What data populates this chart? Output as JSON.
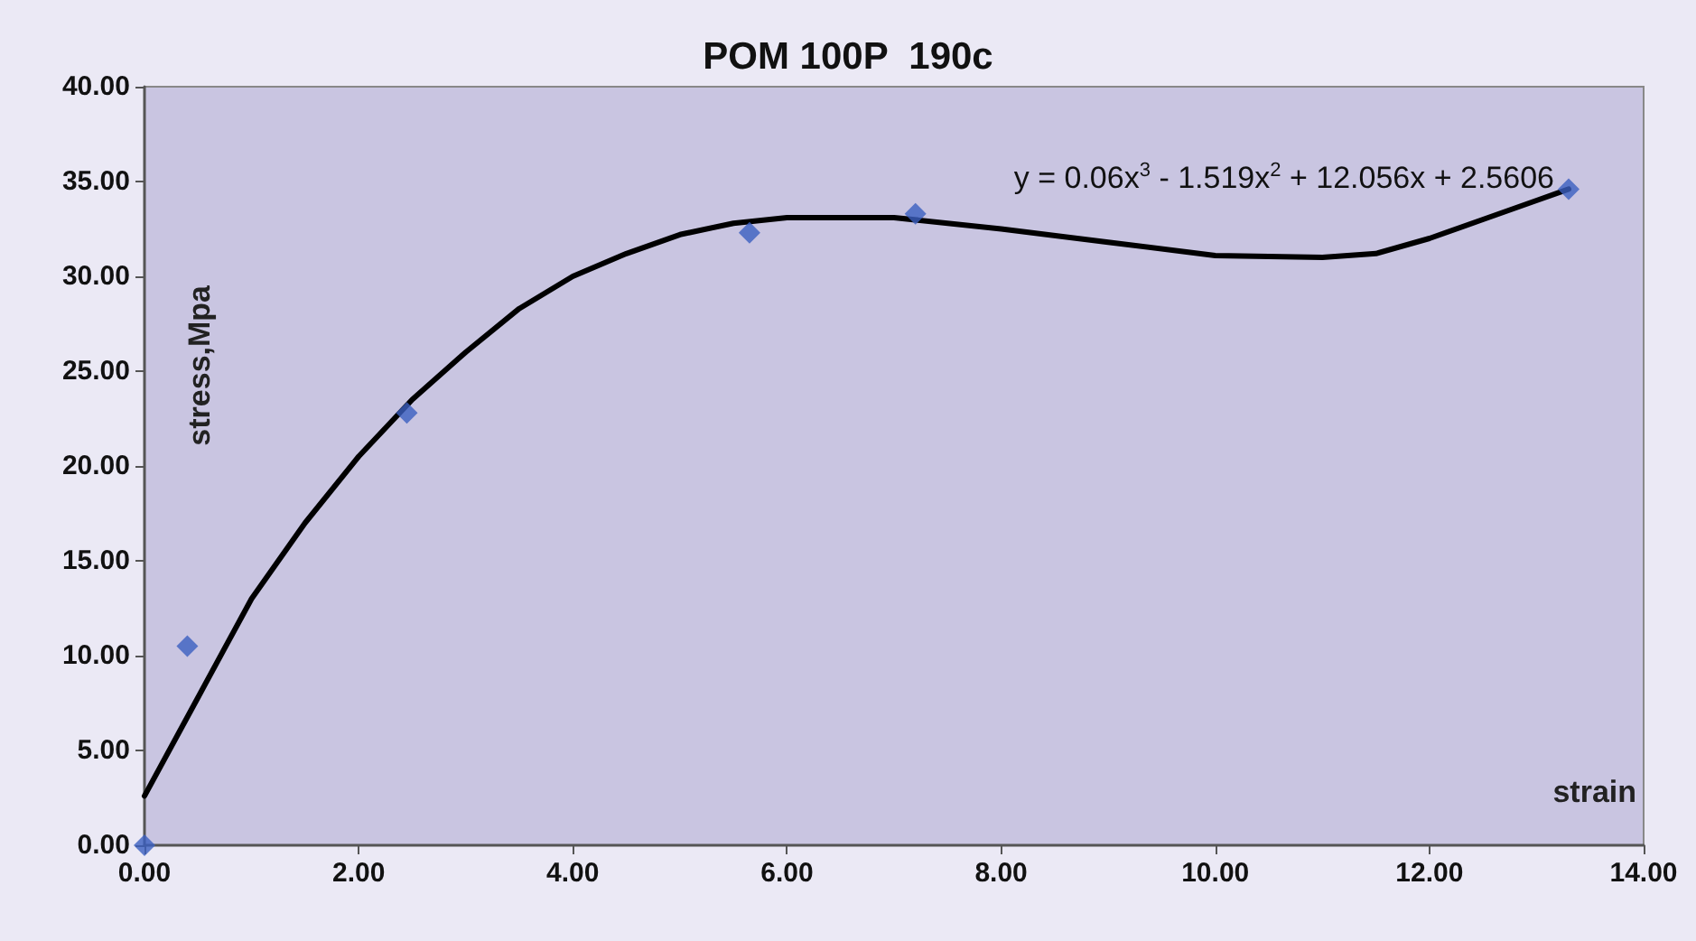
{
  "chart_data": {
    "type": "scatter",
    "title": "POM 100P  190c",
    "xlabel": "strain",
    "ylabel": "stress,Mpa",
    "xlim": [
      0,
      14
    ],
    "xticks": [
      {
        "value": 0,
        "label": "0.00"
      },
      {
        "value": 2,
        "label": "2.00"
      },
      {
        "value": 4,
        "label": "4.00"
      },
      {
        "value": 6,
        "label": "6.00"
      },
      {
        "value": 8,
        "label": "8.00"
      },
      {
        "value": 10,
        "label": "10.00"
      },
      {
        "value": 12,
        "label": "12.00"
      },
      {
        "value": 14,
        "label": "14.00"
      }
    ],
    "ylim": [
      0,
      40
    ],
    "yticks": [
      {
        "value": 0,
        "label": "0.00"
      },
      {
        "value": 5,
        "label": "5.00"
      },
      {
        "value": 10,
        "label": "10.00"
      },
      {
        "value": 15,
        "label": "15.00"
      },
      {
        "value": 20,
        "label": "20.00"
      },
      {
        "value": 25,
        "label": "25.00"
      },
      {
        "value": 30,
        "label": "30.00"
      },
      {
        "value": 35,
        "label": "35.00"
      },
      {
        "value": 40,
        "label": "40.00"
      }
    ],
    "grid": false,
    "marker": "diamond",
    "annotations": [
      {
        "text": "y = 0.06x$^{3}$ - 1.519x$^{2}$ + 12.056x + 2.5606",
        "x": 13.3,
        "y": 34.6
      }
    ],
    "series": [
      {
        "color": "#3b5fc0",
        "x": [
          0,
          0.4,
          2.45,
          5.65,
          7.2,
          13.3
        ],
        "values": [
          0,
          10.5,
          22.8,
          32.3,
          33.3,
          34.6
        ]
      },
      {
        "type": "line",
        "color": "#000000",
        "marker": "none",
        "line_style": "solid",
        "x": [
          0,
          0.5,
          1,
          1.5,
          2,
          2.5,
          3,
          3.5,
          4,
          4.5,
          5,
          5.5,
          6,
          7,
          8,
          9,
          10,
          11,
          11.5,
          12,
          12.5,
          13,
          13.3
        ],
        "values": [
          2.6,
          7.8,
          13,
          17,
          20.5,
          23.5,
          26,
          28.3,
          30,
          31.2,
          32.2,
          32.8,
          33.1,
          33.1,
          32.5,
          31.8,
          31.1,
          31,
          31.2,
          32,
          33,
          34,
          34.6
        ]
      }
    ]
  }
}
